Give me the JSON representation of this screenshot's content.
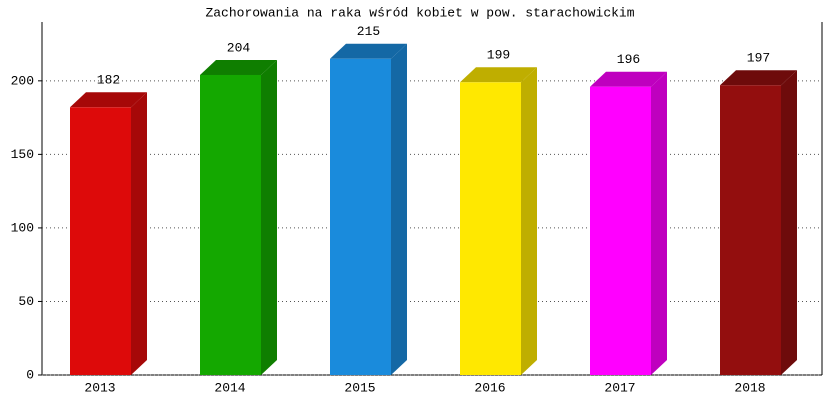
{
  "chart_data": {
    "type": "bar3d",
    "title": "Zachorowania na raka wśród kobiet w pow. starachowickim",
    "categories": [
      "2013",
      "2014",
      "2015",
      "2016",
      "2017",
      "2018"
    ],
    "values": [
      182,
      204,
      215,
      199,
      196,
      197
    ],
    "colors": [
      "#dd0a0a",
      "#14a800",
      "#1a8bdc",
      "#ffe800",
      "#ff00ff",
      "#930e0e"
    ],
    "ylim": [
      0,
      240
    ],
    "yticks": [
      0,
      50,
      100,
      150,
      200
    ],
    "grid": true
  }
}
